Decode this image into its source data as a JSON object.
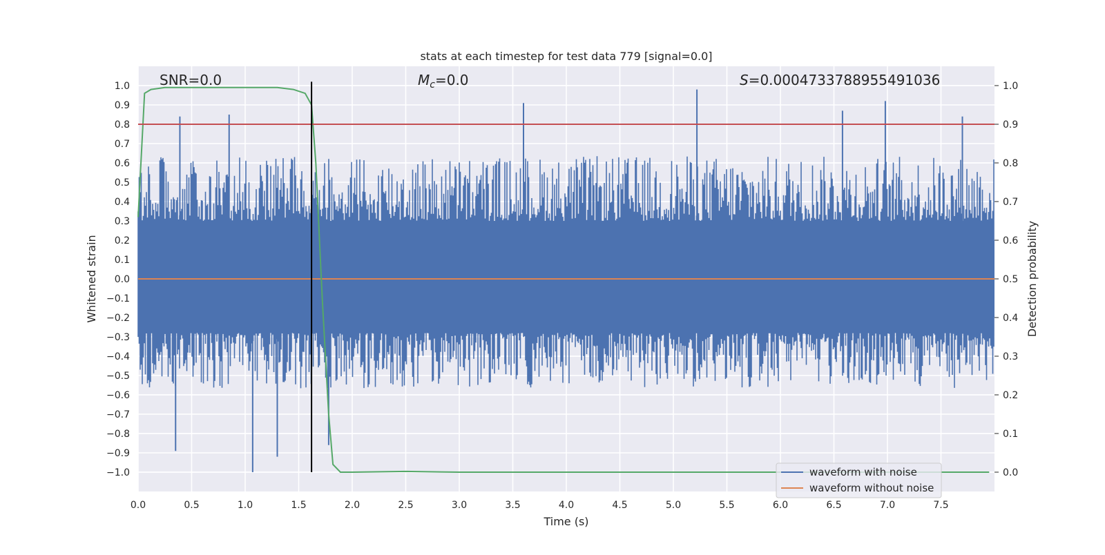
{
  "chart_data": {
    "type": "line",
    "title": "stats at each timestep for test data 779 [signal=0.0]",
    "xlabel": "Time (s)",
    "ylabel_left": "Whitened strain",
    "ylabel_right": "Detection probability",
    "xlim": [
      0.0,
      8.0
    ],
    "ylim_left": [
      -1.1,
      1.1
    ],
    "ylim_right": [
      -0.05,
      1.05
    ],
    "x_ticks": [
      0.0,
      0.5,
      1.0,
      1.5,
      2.0,
      2.5,
      3.0,
      3.5,
      4.0,
      4.5,
      5.0,
      5.5,
      6.0,
      6.5,
      7.0,
      7.5
    ],
    "y_left_ticks": [
      -1.0,
      -0.9,
      -0.8,
      -0.7,
      -0.6,
      -0.5,
      -0.4,
      -0.3,
      -0.2,
      -0.1,
      0.0,
      0.1,
      0.2,
      0.3,
      0.4,
      0.5,
      0.6,
      0.7,
      0.8,
      0.9,
      1.0
    ],
    "y_right_ticks": [
      0.0,
      0.1,
      0.2,
      0.3,
      0.4,
      0.5,
      0.6,
      0.7,
      0.8,
      0.9,
      1.0
    ],
    "annotations": {
      "snr": "SNR=0.0",
      "mc_symbol": "M",
      "mc_sub": "c",
      "mc_value": "=0.0",
      "s_symbol": "S",
      "s_value": "=0.0004733788955491036"
    },
    "vertical_marker_x": 1.62,
    "threshold_probability": 0.9,
    "noise_envelope": {
      "series_name": "waveform with noise",
      "color": "#4c72b0",
      "typical_positive_peak": 0.55,
      "typical_negative_peak": -0.5,
      "notable_peaks": [
        {
          "x": 0.39,
          "y": 0.84
        },
        {
          "x": 0.85,
          "y": 0.85
        },
        {
          "x": 3.6,
          "y": 0.91
        },
        {
          "x": 5.22,
          "y": 0.98
        },
        {
          "x": 6.58,
          "y": 0.87
        },
        {
          "x": 6.98,
          "y": 0.92
        },
        {
          "x": 7.7,
          "y": 0.84
        },
        {
          "x": 1.07,
          "y": -1.0
        },
        {
          "x": 0.35,
          "y": -0.89
        },
        {
          "x": 1.3,
          "y": -0.92
        },
        {
          "x": 1.78,
          "y": -0.86
        }
      ]
    },
    "series": [
      {
        "name": "waveform with noise",
        "color": "#4c72b0",
        "axis": "left"
      },
      {
        "name": "waveform without noise",
        "color": "#dd8452",
        "axis": "left",
        "x": [
          0.0,
          8.0
        ],
        "y": [
          0.0,
          0.0
        ]
      },
      {
        "name": "detection probability",
        "color": "#55a868",
        "axis": "right",
        "x": [
          0.0,
          0.06,
          0.12,
          0.25,
          0.5,
          1.0,
          1.3,
          1.45,
          1.56,
          1.62,
          1.66,
          1.72,
          1.78,
          1.82,
          1.89,
          2.0,
          2.5,
          3.0,
          5.0,
          7.0,
          7.95
        ],
        "y": [
          0.66,
          0.98,
          0.99,
          0.995,
          0.995,
          0.995,
          0.995,
          0.99,
          0.98,
          0.95,
          0.8,
          0.45,
          0.15,
          0.02,
          0.0,
          0.0,
          0.002,
          0.0,
          0.0,
          0.0,
          0.0
        ]
      },
      {
        "name": "threshold",
        "color": "#c44e52",
        "axis": "right",
        "x": [
          0.0,
          8.0
        ],
        "y": [
          0.9,
          0.9
        ]
      }
    ],
    "legend": {
      "position": "lower-right",
      "entries": [
        {
          "label": "waveform with noise",
          "color": "#4c72b0"
        },
        {
          "label": "waveform without noise",
          "color": "#dd8452"
        }
      ]
    },
    "colors": {
      "axes_background": "#eaeaf2",
      "grid": "#ffffff",
      "marker_line": "#000000"
    }
  }
}
